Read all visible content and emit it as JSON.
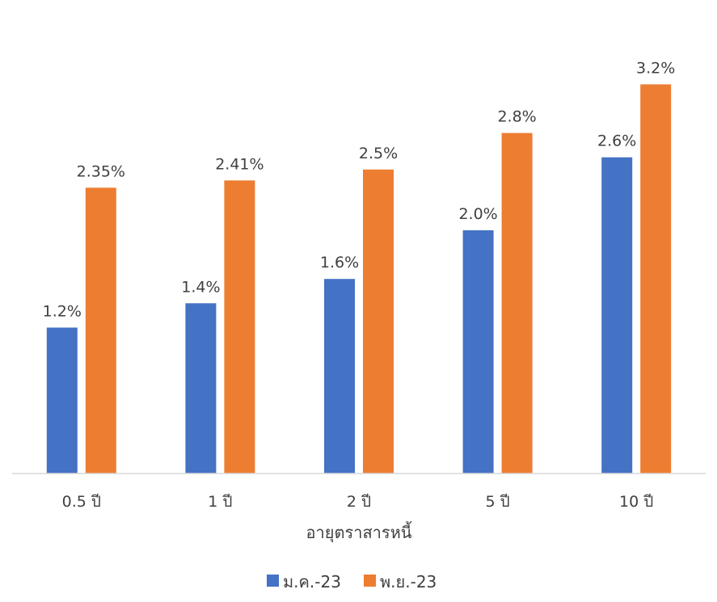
{
  "chart_data": {
    "type": "bar",
    "title": "",
    "xlabel": "อายุตราสารหนี้",
    "ylabel": "",
    "categories": [
      "0.5 ปี",
      "1 ปี",
      "2 ปี",
      "5 ปี",
      "10 ปี"
    ],
    "series": [
      {
        "name": "ม.ค.-23",
        "color": "#4472C4",
        "values": [
          1.2,
          1.4,
          1.6,
          2.0,
          2.6
        ],
        "labels": [
          "1.2%",
          "1.4%",
          "1.6%",
          "2.0%",
          "2.6%"
        ]
      },
      {
        "name": "พ.ย.-23",
        "color": "#ED7D31",
        "values": [
          2.35,
          2.41,
          2.5,
          2.8,
          3.2
        ],
        "labels": [
          "2.35%",
          "2.41%",
          "2.5%",
          "2.8%",
          "3.2%"
        ]
      }
    ],
    "ylim": [
      0,
      3.5
    ],
    "grid": false,
    "legend": "bottom"
  }
}
